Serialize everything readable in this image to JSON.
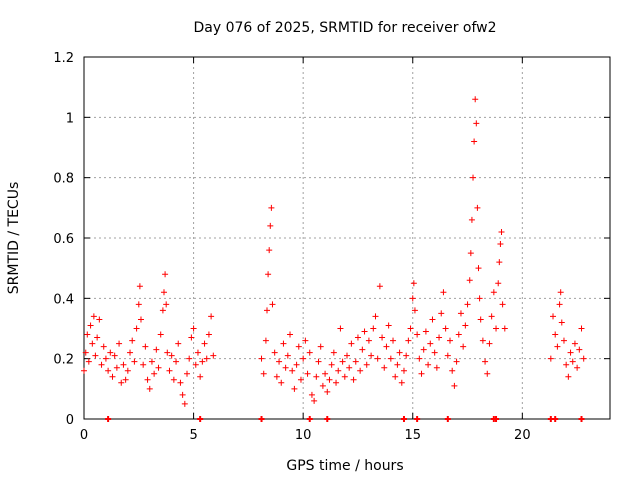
{
  "chart_data": {
    "type": "scatter",
    "title": "Day 076 of 2025, SRMTID for receiver ofw2",
    "xlabel": "GPS time / hours",
    "ylabel": "SRMTID / TECUs",
    "xlim": [
      0,
      24
    ],
    "ylim": [
      0,
      1.2
    ],
    "x_ticks": [
      "0",
      "5",
      "10",
      "15",
      "20"
    ],
    "y_ticks": [
      "0",
      "0.2",
      "0.4",
      "0.6",
      "0.8",
      "1",
      "1.2"
    ],
    "grid": true,
    "marker": "+",
    "color": "#ff0000",
    "series": [
      {
        "name": "SRMTID",
        "points": [
          [
            0.0,
            0.16
          ],
          [
            0.08,
            0.22
          ],
          [
            0.15,
            0.28
          ],
          [
            0.22,
            0.19
          ],
          [
            0.3,
            0.31
          ],
          [
            0.38,
            0.25
          ],
          [
            0.45,
            0.34
          ],
          [
            0.52,
            0.21
          ],
          [
            0.6,
            0.27
          ],
          [
            0.7,
            0.33
          ],
          [
            0.8,
            0.18
          ],
          [
            0.9,
            0.24
          ],
          [
            1.0,
            0.2
          ],
          [
            1.1,
            0.16
          ],
          [
            1.2,
            0.22
          ],
          [
            1.3,
            0.14
          ],
          [
            1.4,
            0.21
          ],
          [
            1.5,
            0.17
          ],
          [
            1.6,
            0.25
          ],
          [
            1.7,
            0.12
          ],
          [
            1.8,
            0.18
          ],
          [
            1.9,
            0.13
          ],
          [
            2.0,
            0.16
          ],
          [
            2.1,
            0.22
          ],
          [
            2.2,
            0.26
          ],
          [
            2.3,
            0.19
          ],
          [
            2.4,
            0.3
          ],
          [
            2.5,
            0.38
          ],
          [
            2.55,
            0.44
          ],
          [
            2.6,
            0.33
          ],
          [
            2.7,
            0.18
          ],
          [
            2.8,
            0.24
          ],
          [
            2.9,
            0.13
          ],
          [
            3.0,
            0.1
          ],
          [
            3.1,
            0.19
          ],
          [
            3.2,
            0.15
          ],
          [
            3.3,
            0.23
          ],
          [
            3.4,
            0.17
          ],
          [
            3.5,
            0.28
          ],
          [
            3.6,
            0.36
          ],
          [
            3.65,
            0.42
          ],
          [
            3.7,
            0.48
          ],
          [
            3.75,
            0.38
          ],
          [
            3.8,
            0.22
          ],
          [
            3.9,
            0.16
          ],
          [
            4.0,
            0.21
          ],
          [
            4.1,
            0.13
          ],
          [
            4.2,
            0.19
          ],
          [
            4.3,
            0.25
          ],
          [
            4.4,
            0.12
          ],
          [
            4.5,
            0.08
          ],
          [
            4.6,
            0.05
          ],
          [
            4.7,
            0.15
          ],
          [
            4.8,
            0.2
          ],
          [
            4.9,
            0.27
          ],
          [
            5.0,
            0.3
          ],
          [
            5.1,
            0.18
          ],
          [
            5.2,
            0.22
          ],
          [
            5.3,
            0.14
          ],
          [
            5.4,
            0.19
          ],
          [
            5.5,
            0.25
          ],
          [
            5.6,
            0.2
          ],
          [
            5.7,
            0.28
          ],
          [
            5.8,
            0.34
          ],
          [
            5.9,
            0.21
          ],
          [
            8.1,
            0.2
          ],
          [
            8.2,
            0.15
          ],
          [
            8.3,
            0.26
          ],
          [
            8.35,
            0.36
          ],
          [
            8.4,
            0.48
          ],
          [
            8.45,
            0.56
          ],
          [
            8.5,
            0.64
          ],
          [
            8.55,
            0.7
          ],
          [
            8.6,
            0.38
          ],
          [
            8.7,
            0.22
          ],
          [
            8.8,
            0.14
          ],
          [
            8.9,
            0.19
          ],
          [
            9.0,
            0.12
          ],
          [
            9.1,
            0.25
          ],
          [
            9.2,
            0.17
          ],
          [
            9.3,
            0.21
          ],
          [
            9.4,
            0.28
          ],
          [
            9.5,
            0.16
          ],
          [
            9.6,
            0.1
          ],
          [
            9.7,
            0.18
          ],
          [
            9.8,
            0.24
          ],
          [
            9.9,
            0.13
          ],
          [
            10.0,
            0.2
          ],
          [
            10.1,
            0.26
          ],
          [
            10.2,
            0.15
          ],
          [
            10.3,
            0.22
          ],
          [
            10.4,
            0.08
          ],
          [
            10.5,
            0.06
          ],
          [
            10.6,
            0.14
          ],
          [
            10.7,
            0.19
          ],
          [
            10.8,
            0.24
          ],
          [
            10.9,
            0.11
          ],
          [
            11.0,
            0.15
          ],
          [
            11.1,
            0.09
          ],
          [
            11.2,
            0.13
          ],
          [
            11.3,
            0.18
          ],
          [
            11.4,
            0.22
          ],
          [
            11.5,
            0.12
          ],
          [
            11.6,
            0.16
          ],
          [
            11.7,
            0.3
          ],
          [
            11.8,
            0.19
          ],
          [
            11.9,
            0.14
          ],
          [
            12.0,
            0.21
          ],
          [
            12.1,
            0.17
          ],
          [
            12.2,
            0.25
          ],
          [
            12.3,
            0.13
          ],
          [
            12.4,
            0.19
          ],
          [
            12.5,
            0.27
          ],
          [
            12.6,
            0.16
          ],
          [
            12.7,
            0.23
          ],
          [
            12.8,
            0.29
          ],
          [
            12.9,
            0.18
          ],
          [
            13.0,
            0.26
          ],
          [
            13.1,
            0.21
          ],
          [
            13.2,
            0.3
          ],
          [
            13.3,
            0.34
          ],
          [
            13.4,
            0.2
          ],
          [
            13.5,
            0.44
          ],
          [
            13.6,
            0.27
          ],
          [
            13.7,
            0.17
          ],
          [
            13.8,
            0.24
          ],
          [
            13.9,
            0.31
          ],
          [
            14.0,
            0.2
          ],
          [
            14.1,
            0.26
          ],
          [
            14.2,
            0.14
          ],
          [
            14.3,
            0.18
          ],
          [
            14.4,
            0.22
          ],
          [
            14.5,
            0.12
          ],
          [
            14.6,
            0.16
          ],
          [
            14.7,
            0.21
          ],
          [
            14.8,
            0.26
          ],
          [
            14.9,
            0.3
          ],
          [
            15.0,
            0.4
          ],
          [
            15.05,
            0.45
          ],
          [
            15.1,
            0.36
          ],
          [
            15.2,
            0.28
          ],
          [
            15.3,
            0.2
          ],
          [
            15.4,
            0.15
          ],
          [
            15.5,
            0.23
          ],
          [
            15.6,
            0.29
          ],
          [
            15.7,
            0.18
          ],
          [
            15.8,
            0.25
          ],
          [
            15.9,
            0.33
          ],
          [
            16.0,
            0.22
          ],
          [
            16.1,
            0.17
          ],
          [
            16.2,
            0.27
          ],
          [
            16.3,
            0.35
          ],
          [
            16.4,
            0.42
          ],
          [
            16.5,
            0.3
          ],
          [
            16.6,
            0.21
          ],
          [
            16.7,
            0.26
          ],
          [
            16.8,
            0.16
          ],
          [
            16.9,
            0.11
          ],
          [
            17.0,
            0.19
          ],
          [
            17.1,
            0.28
          ],
          [
            17.2,
            0.35
          ],
          [
            17.3,
            0.24
          ],
          [
            17.4,
            0.31
          ],
          [
            17.5,
            0.38
          ],
          [
            17.6,
            0.46
          ],
          [
            17.65,
            0.55
          ],
          [
            17.7,
            0.66
          ],
          [
            17.75,
            0.8
          ],
          [
            17.8,
            0.92
          ],
          [
            17.85,
            1.06
          ],
          [
            17.9,
            0.98
          ],
          [
            17.95,
            0.7
          ],
          [
            18.0,
            0.5
          ],
          [
            18.05,
            0.4
          ],
          [
            18.1,
            0.33
          ],
          [
            18.2,
            0.26
          ],
          [
            18.3,
            0.19
          ],
          [
            18.4,
            0.15
          ],
          [
            18.5,
            0.25
          ],
          [
            18.6,
            0.34
          ],
          [
            18.7,
            0.42
          ],
          [
            18.8,
            0.3
          ],
          [
            18.9,
            0.45
          ],
          [
            18.95,
            0.52
          ],
          [
            19.0,
            0.58
          ],
          [
            19.05,
            0.62
          ],
          [
            19.1,
            0.38
          ],
          [
            19.2,
            0.3
          ],
          [
            21.3,
            0.2
          ],
          [
            21.4,
            0.34
          ],
          [
            21.5,
            0.28
          ],
          [
            21.6,
            0.24
          ],
          [
            21.7,
            0.38
          ],
          [
            21.75,
            0.42
          ],
          [
            21.8,
            0.32
          ],
          [
            21.9,
            0.26
          ],
          [
            22.0,
            0.18
          ],
          [
            22.1,
            0.14
          ],
          [
            22.2,
            0.22
          ],
          [
            22.3,
            0.19
          ],
          [
            22.4,
            0.25
          ],
          [
            22.5,
            0.17
          ],
          [
            22.6,
            0.23
          ],
          [
            22.7,
            0.3
          ],
          [
            22.8,
            0.2
          ]
        ]
      }
    ],
    "zero_markers_x": [
      1.1,
      5.3,
      8.1,
      10.3,
      11.1,
      14.6,
      15.2,
      16.6,
      18.7,
      18.8,
      21.3,
      21.5,
      22.7
    ]
  }
}
